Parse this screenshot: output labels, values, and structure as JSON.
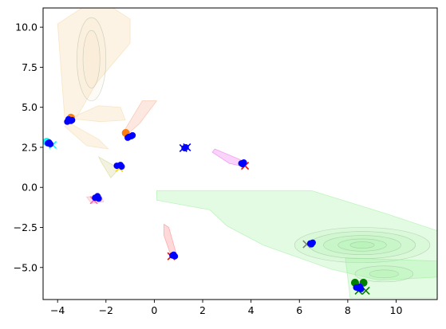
{
  "chart_data": {
    "type": "scatter",
    "title": "",
    "xlabel": "",
    "ylabel": "",
    "xlim": [
      -4.6,
      11.7
    ],
    "ylim": [
      -7.0,
      11.2
    ],
    "grid": false,
    "legend": "none",
    "x_ticks": [
      -4,
      -2,
      0,
      2,
      4,
      6,
      8,
      10
    ],
    "y_ticks": [
      -5.0,
      -2.5,
      0.0,
      2.5,
      5.0,
      7.5,
      10.0
    ],
    "x_tick_labels": [
      "−4",
      "−2",
      "0",
      "2",
      "4",
      "6",
      "8",
      "10"
    ],
    "y_tick_labels": [
      "−5.0",
      "−2.5",
      "0.0",
      "2.5",
      "5.0",
      "7.5",
      "10.0"
    ],
    "density_regions": [
      {
        "color": "#90ee90",
        "opacity": 0.25,
        "outline": [
          [
            0.1,
            -0.2
          ],
          [
            6.5,
            -0.2
          ],
          [
            9.5,
            -1.6
          ],
          [
            11.7,
            -2.7
          ],
          [
            11.7,
            -5.6
          ],
          [
            9.3,
            -5.8
          ],
          [
            7.3,
            -5.1
          ],
          [
            4.5,
            -3.6
          ],
          [
            3.0,
            -2.4
          ],
          [
            2.3,
            -1.4
          ],
          [
            1.2,
            -1.1
          ],
          [
            0.1,
            -0.8
          ]
        ],
        "contours": [
          {
            "center": [
              8.6,
              -3.6
            ],
            "rx": 2.8,
            "ry": 1.1
          },
          {
            "center": [
              8.6,
              -3.6
            ],
            "rx": 2.2,
            "ry": 0.85
          },
          {
            "center": [
              8.6,
              -3.6
            ],
            "rx": 1.6,
            "ry": 0.6
          },
          {
            "center": [
              8.6,
              -3.6
            ],
            "rx": 1.0,
            "ry": 0.38
          },
          {
            "center": [
              8.6,
              -3.6
            ],
            "rx": 0.5,
            "ry": 0.2
          }
        ]
      },
      {
        "color": "#90ee90",
        "opacity": 0.25,
        "outline": [
          [
            7.9,
            -4.4
          ],
          [
            11.7,
            -4.6
          ],
          [
            11.7,
            -6.9
          ],
          [
            8.1,
            -6.9
          ]
        ],
        "contours": [
          {
            "center": [
              9.5,
              -5.4
            ],
            "rx": 1.2,
            "ry": 0.5
          },
          {
            "center": [
              9.5,
              -5.4
            ],
            "rx": 0.6,
            "ry": 0.25
          }
        ]
      },
      {
        "color": "#f5deb3",
        "opacity": 0.35,
        "outline": [
          [
            -3.7,
            4.2
          ],
          [
            -4.0,
            10.2
          ],
          [
            -3.0,
            11.2
          ],
          [
            -1.7,
            11.2
          ],
          [
            -1.0,
            10.5
          ],
          [
            -1.0,
            9.0
          ],
          [
            -2.4,
            6.5
          ],
          [
            -3.2,
            4.4
          ]
        ],
        "contours": [
          {
            "center": [
              -2.6,
              8.0
            ],
            "rx": 0.6,
            "ry": 2.6
          },
          {
            "center": [
              -2.6,
              8.0
            ],
            "rx": 0.35,
            "ry": 1.8
          }
        ]
      },
      {
        "color": "#f5deb3",
        "opacity": 0.35,
        "outline": [
          [
            -3.6,
            4.1
          ],
          [
            -2.3,
            3.0
          ],
          [
            -1.9,
            2.4
          ],
          [
            -2.8,
            2.6
          ],
          [
            -3.7,
            3.8
          ]
        ],
        "contours": []
      },
      {
        "color": "#f5deb3",
        "opacity": 0.35,
        "outline": [
          [
            -3.5,
            4.3
          ],
          [
            -2.3,
            5.1
          ],
          [
            -1.4,
            5.0
          ],
          [
            -1.2,
            4.2
          ],
          [
            -2.2,
            4.1
          ]
        ],
        "contours": []
      },
      {
        "color": "#f4a582",
        "opacity": 0.25,
        "outline": [
          [
            -1.3,
            3.4
          ],
          [
            -0.5,
            5.4
          ],
          [
            0.1,
            5.4
          ],
          [
            -0.6,
            4.0
          ],
          [
            -1.2,
            3.2
          ]
        ],
        "contours": []
      },
      {
        "color": "#d9d9a0",
        "opacity": 0.35,
        "outline": [
          [
            -1.6,
            1.3
          ],
          [
            -2.3,
            1.9
          ],
          [
            -2.2,
            1.6
          ],
          [
            -1.8,
            0.6
          ],
          [
            -1.5,
            1.1
          ]
        ],
        "contours": []
      },
      {
        "color": "#ee82ee",
        "opacity": 0.35,
        "outline": [
          [
            2.5,
            2.4
          ],
          [
            3.6,
            1.7
          ],
          [
            3.7,
            1.3
          ],
          [
            3.1,
            1.5
          ],
          [
            2.4,
            2.2
          ]
        ],
        "contours": []
      },
      {
        "color": "#ff8080",
        "opacity": 0.3,
        "outline": [
          [
            0.4,
            -2.3
          ],
          [
            0.6,
            -2.5
          ],
          [
            0.9,
            -4.1
          ],
          [
            0.7,
            -4.3
          ],
          [
            0.4,
            -3.0
          ]
        ],
        "contours": []
      },
      {
        "color": "#ffb6c1",
        "opacity": 0.4,
        "outline": [
          [
            -2.8,
            -0.6
          ],
          [
            -2.2,
            -0.5
          ],
          [
            -2.1,
            -0.9
          ],
          [
            -2.6,
            -1.0
          ]
        ],
        "contours": []
      }
    ],
    "series": [
      {
        "marker": "circle",
        "color": "#ff7f0e",
        "x": [
          -3.45
        ],
        "y": [
          4.35
        ]
      },
      {
        "marker": "circle",
        "color": "#ff7f0e",
        "x": [
          -1.18
        ],
        "y": [
          3.4
        ]
      },
      {
        "marker": "circle",
        "color": "#00ffff",
        "x": [
          -4.45
        ],
        "y": [
          2.85
        ]
      },
      {
        "marker": "circle",
        "color": "#008000",
        "x": [
          8.3,
          8.65
        ],
        "y": [
          -5.95,
          -5.95
        ]
      },
      {
        "marker": "x",
        "color": "#00ffff",
        "x": [
          -4.2
        ],
        "y": [
          2.65
        ]
      },
      {
        "marker": "x",
        "color": "#ffd700",
        "x": [
          -1.45
        ],
        "y": [
          1.2
        ]
      },
      {
        "marker": "x",
        "color": "#ff69b4",
        "x": [
          -2.5
        ],
        "y": [
          -0.8
        ]
      },
      {
        "marker": "x",
        "color": "#ff0000",
        "x": [
          0.7
        ],
        "y": [
          -4.3
        ]
      },
      {
        "marker": "x",
        "color": "#ff0000",
        "x": [
          3.75
        ],
        "y": [
          1.35
        ]
      },
      {
        "marker": "x",
        "color": "#808080",
        "x": [
          6.3
        ],
        "y": [
          -3.55
        ]
      },
      {
        "marker": "x",
        "color": "#008000",
        "x": [
          8.45,
          8.75
        ],
        "y": [
          -6.45,
          -6.45
        ]
      },
      {
        "marker": "x",
        "color": "#0000ff",
        "x": [
          1.2,
          1.35
        ],
        "y": [
          2.45,
          2.5
        ]
      },
      {
        "marker": "dot",
        "color": "#0000ff",
        "x": [
          -3.6,
          -3.5,
          -3.45,
          -3.55,
          -3.4,
          -1.05,
          -0.95,
          -0.9,
          -1.1,
          1.25,
          1.3,
          -4.4,
          -4.35,
          -4.3,
          -1.55,
          -1.4,
          -1.35,
          -2.45,
          -2.35,
          -2.3,
          3.6,
          3.7,
          3.65,
          0.75,
          0.85,
          0.8,
          6.45,
          6.5,
          6.55,
          8.35,
          8.45,
          8.5,
          8.55
        ],
        "y": [
          4.1,
          4.2,
          4.15,
          4.25,
          4.2,
          3.15,
          3.2,
          3.25,
          3.1,
          2.45,
          2.5,
          2.75,
          2.8,
          2.7,
          1.35,
          1.4,
          1.3,
          -0.65,
          -0.55,
          -0.7,
          1.5,
          1.55,
          1.45,
          -4.25,
          -4.3,
          -4.2,
          -3.5,
          -3.55,
          -3.45,
          -6.25,
          -6.3,
          -6.2,
          -6.35
        ]
      }
    ]
  }
}
